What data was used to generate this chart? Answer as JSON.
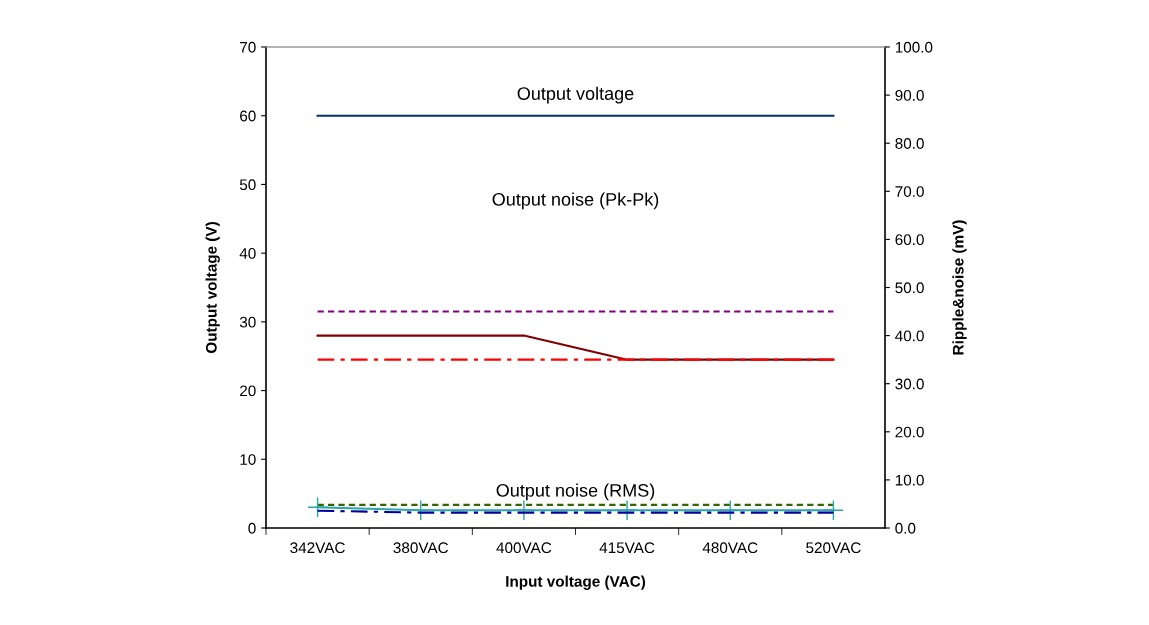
{
  "chart_data": {
    "type": "line",
    "categories": [
      "342VAC",
      "380VAC",
      "400VAC",
      "415VAC",
      "480VAC",
      "520VAC"
    ],
    "xlabel": "Input voltage (VAC)",
    "ylabel": "Output voltage (V)",
    "y2label": "Ripple&noise (mV)",
    "ylim": [
      0,
      70
    ],
    "yticks": [
      0,
      10,
      20,
      30,
      40,
      50,
      60,
      70
    ],
    "y2lim": [
      0,
      100
    ],
    "y2ticks": [
      {
        "value": 0,
        "label": "0.0"
      },
      {
        "value": 10,
        "label": "10.0"
      },
      {
        "value": 20,
        "label": "20.0"
      },
      {
        "value": 30,
        "label": "30.0"
      },
      {
        "value": 40,
        "label": "40.0"
      },
      {
        "value": 50,
        "label": "50.0"
      },
      {
        "value": 60,
        "label": "60.0"
      },
      {
        "value": 70,
        "label": "70.0"
      },
      {
        "value": 80,
        "label": "80.0"
      },
      {
        "value": 90,
        "label": "90.0"
      },
      {
        "value": 100,
        "label": "100.0"
      }
    ],
    "grid": false,
    "legend": false,
    "series": [
      {
        "color": "#003366",
        "values": [
          60,
          60,
          60,
          60,
          60,
          60
        ],
        "line_style": "solid"
      },
      {
        "color": "#800080",
        "values": [
          45,
          45,
          45,
          45,
          45,
          45
        ],
        "axis": "y2",
        "line_style": "dashed"
      },
      {
        "color": "#800000",
        "values": [
          40,
          40,
          40,
          35,
          35,
          35
        ],
        "axis": "y2",
        "line_style": "solid"
      },
      {
        "color": "#ff0000",
        "values": [
          35,
          35,
          35,
          35,
          35,
          35
        ],
        "axis": "y2",
        "line_style": "dashdot"
      },
      {
        "color": "#336600",
        "values": [
          4.8,
          4.8,
          4.8,
          4.8,
          4.8,
          4.8
        ],
        "axis": "y2",
        "line_style": "dashed"
      },
      {
        "color": "#2aa8a8",
        "values": [
          4.3,
          3.7,
          3.7,
          3.7,
          3.7,
          3.7
        ],
        "axis": "y2",
        "line_style": "solid",
        "marker": "cross"
      },
      {
        "color": "#000099",
        "values": [
          3.6,
          3.2,
          3.2,
          3.2,
          3.2,
          3.2
        ],
        "axis": "y2",
        "line_style": "dashdot"
      }
    ],
    "annotations": [
      "Output voltage",
      "Output noise (Pk-Pk)",
      "Output noise (RMS)"
    ]
  }
}
